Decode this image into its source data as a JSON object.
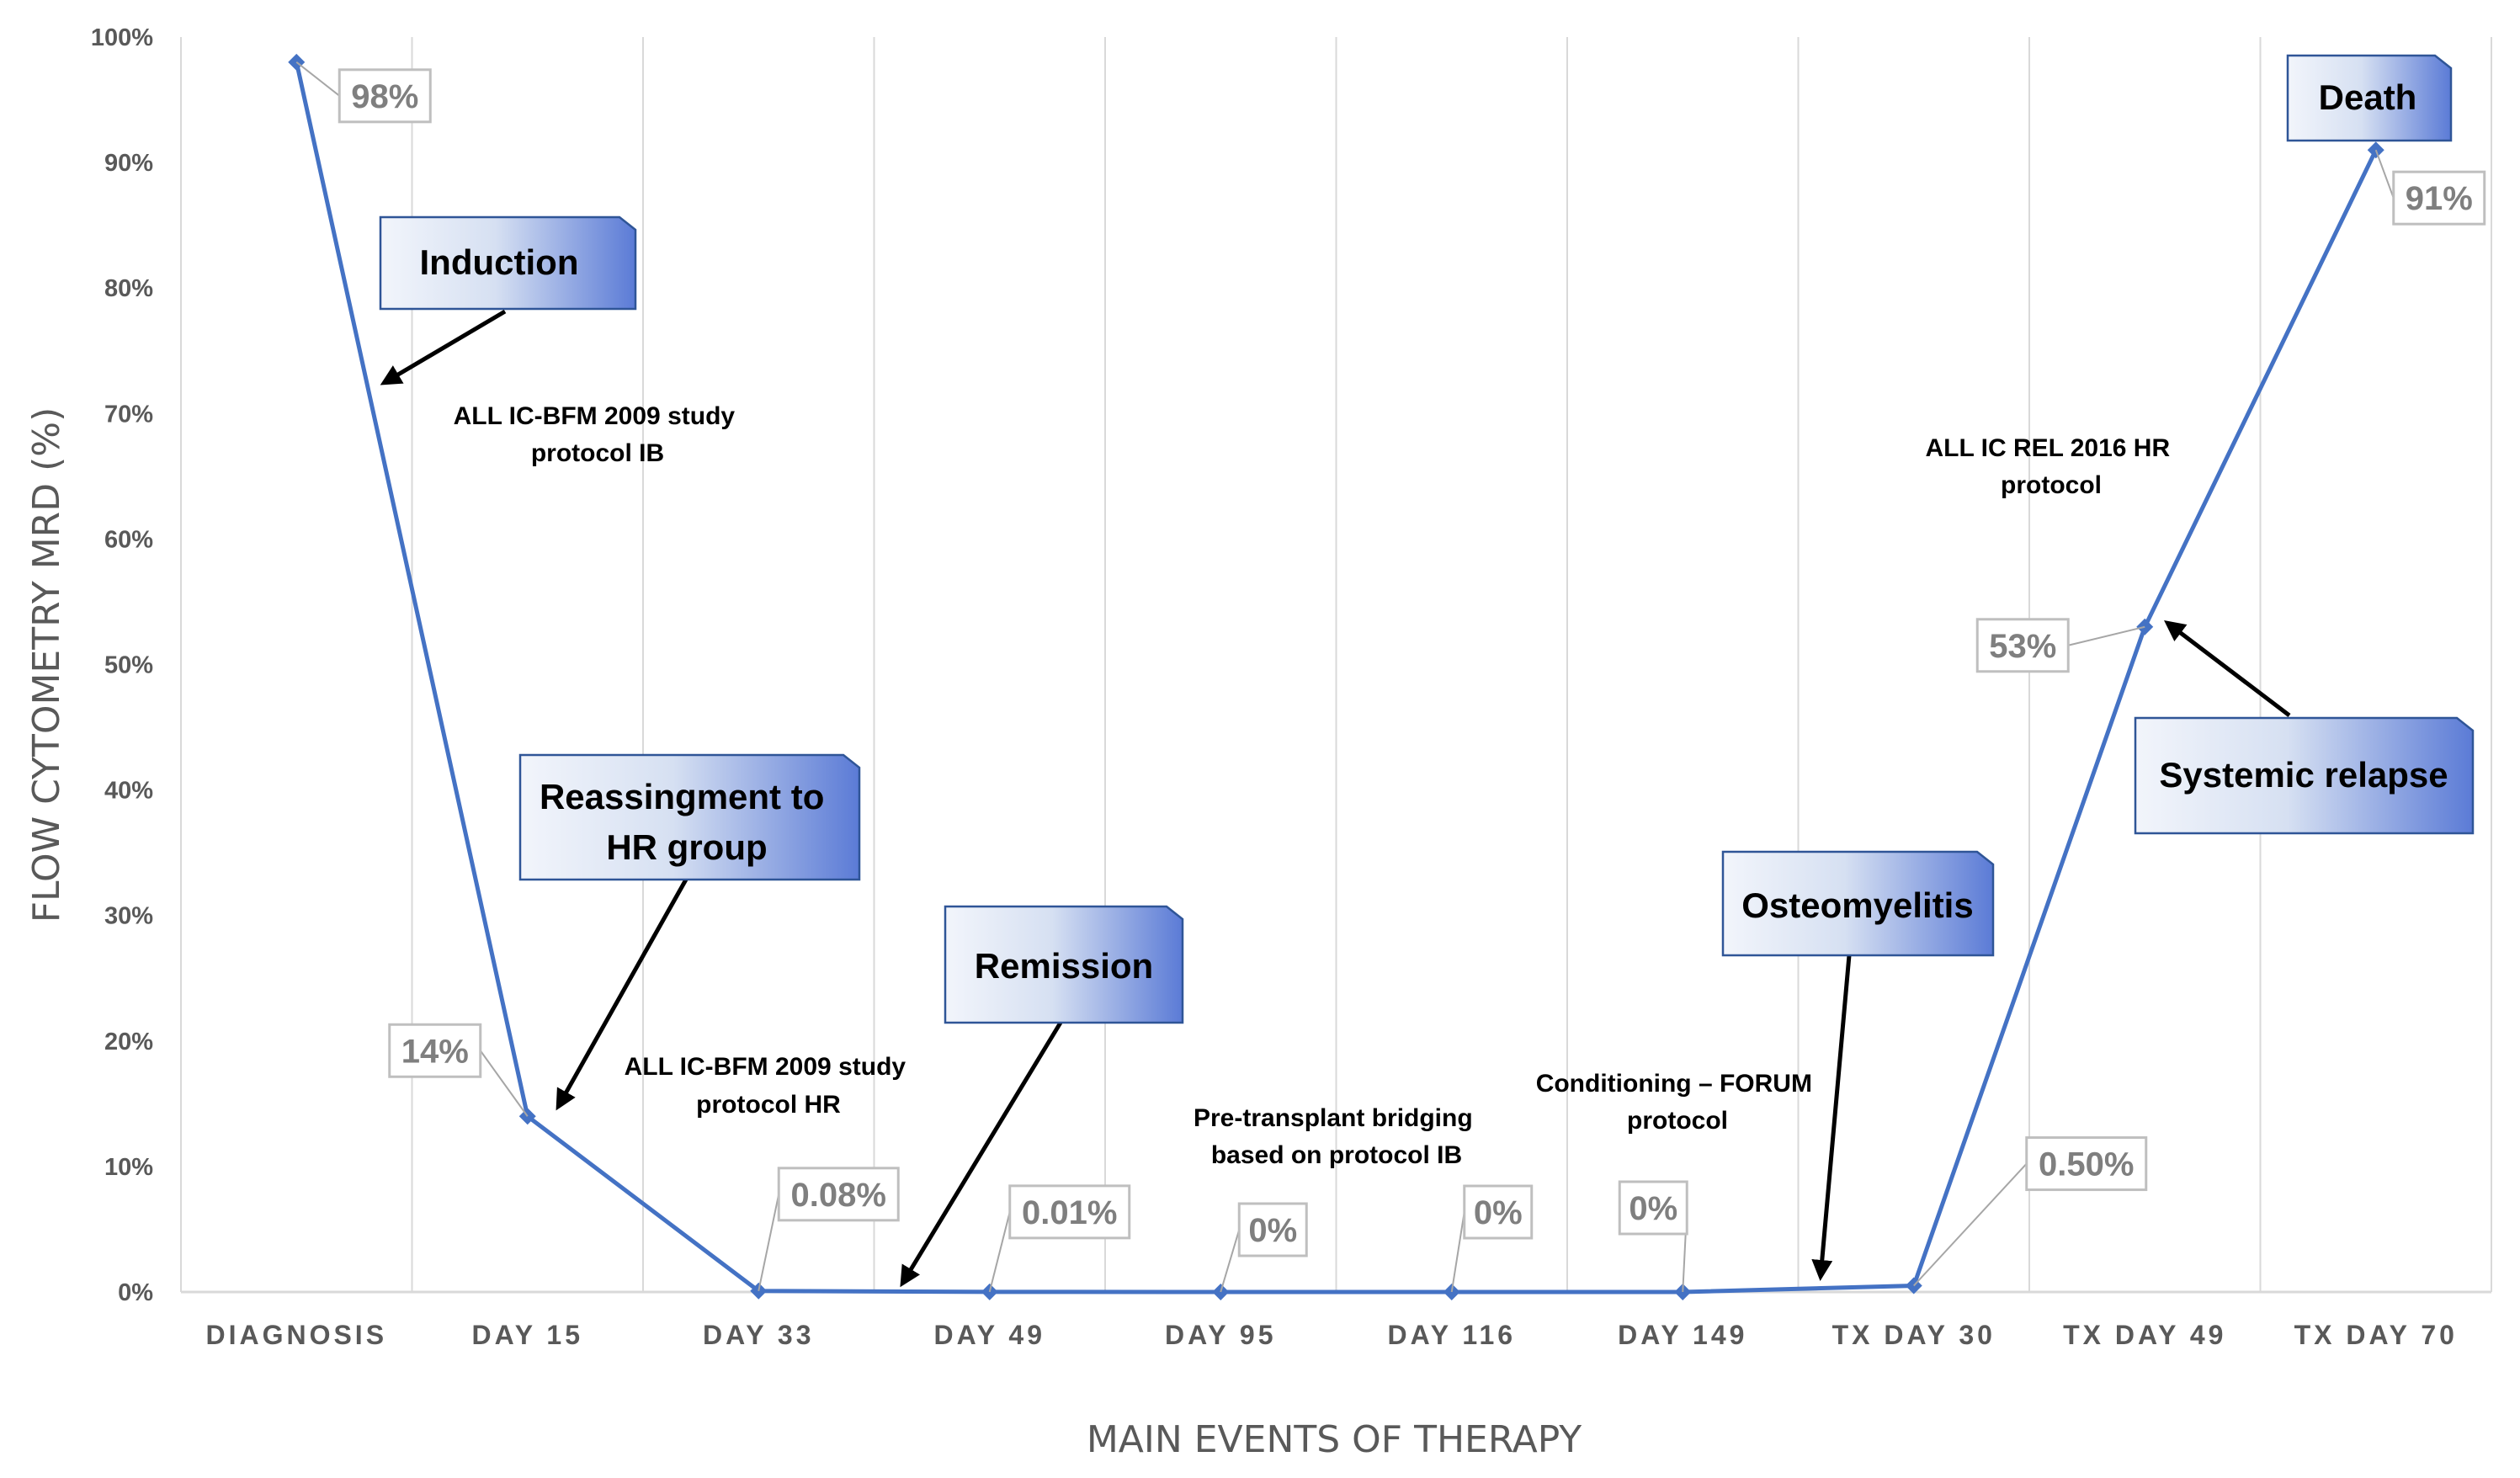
{
  "chart_data": {
    "type": "line",
    "title": "",
    "xlabel": "MAIN EVENTS OF THERAPY",
    "ylabel": "FLOW CYTOMETRY  MRD (%)",
    "ylim": [
      0,
      100
    ],
    "y_ticks": [
      "0%",
      "10%",
      "20%",
      "30%",
      "40%",
      "50%",
      "60%",
      "70%",
      "80%",
      "90%",
      "100%"
    ],
    "categories": [
      "DIAGNOSIS",
      "DAY 15",
      "DAY 33",
      "DAY 49",
      "DAY 95",
      "DAY 116",
      "DAY 149",
      "TX DAY 30",
      "TX DAY 49",
      "TX DAY 70"
    ],
    "series": [
      {
        "name": "Flow cytometry MRD",
        "values": [
          98,
          14,
          0.08,
          0.01,
          0,
          0,
          0,
          0.5,
          53,
          91
        ]
      }
    ],
    "data_labels": [
      "98%",
      "14%",
      "0.08%",
      "0.01%",
      "0%",
      "0%",
      "0%",
      "0.50%",
      "53%",
      "91%"
    ],
    "grid": true,
    "legend": "none",
    "annotations": {
      "callouts": [
        "Induction",
        "Reassingment to HR group",
        "Remission",
        "Osteomyelitis",
        "Systemic relapse",
        "Death"
      ],
      "protocol_notes": [
        "ALL IC-BFM 2009  study protocol IB",
        "ALL IC-BFM 2009  study protocol HR",
        "Pre-transplant bridging based on protocol IB",
        "Conditioning – FORUM protocol",
        "ALL IC REL 2016  HR protocol"
      ]
    }
  },
  "colors": {
    "series": "#4472c4",
    "grid": "#d9d9d9",
    "text": "#595959"
  }
}
